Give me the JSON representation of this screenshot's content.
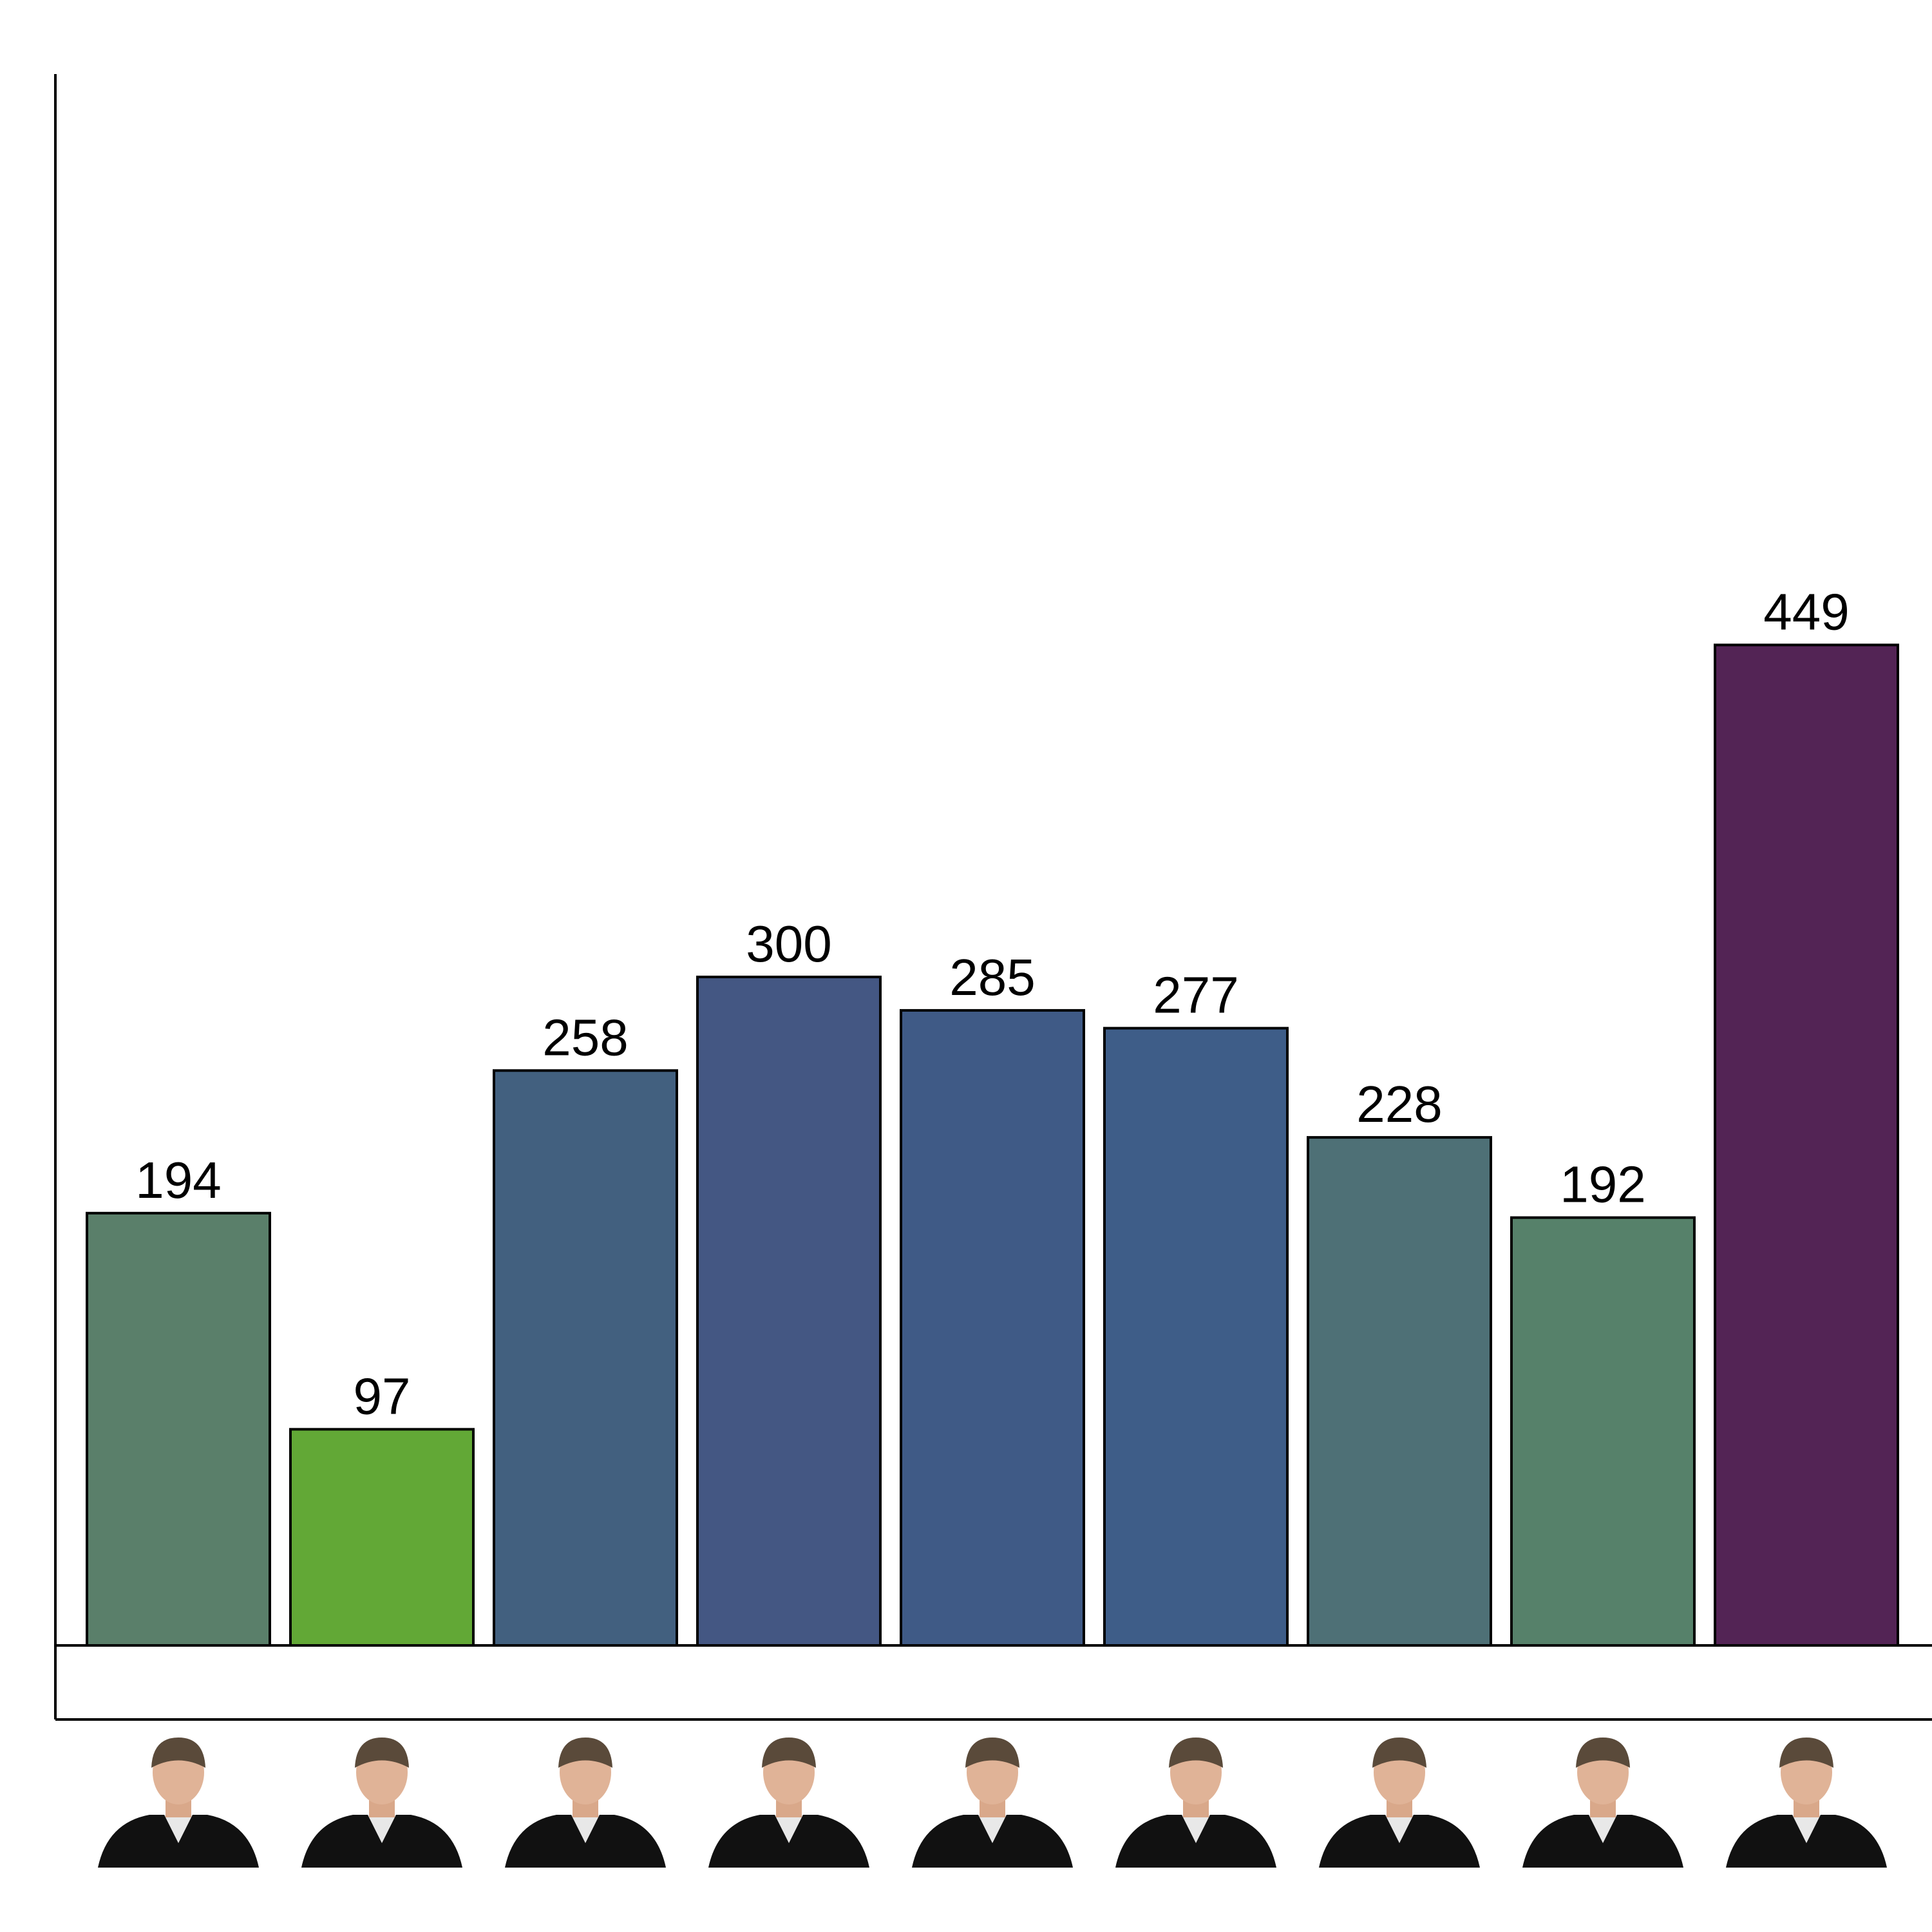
{
  "chart_data": {
    "type": "bar",
    "title": "",
    "xlabel": "",
    "ylabel": "",
    "categories": [
      "",
      "",
      "",
      "",
      "",
      "",
      "",
      "",
      ""
    ],
    "category_icons": [
      "justice-portrait-icon",
      "justice-portrait-icon",
      "justice-portrait-icon",
      "justice-portrait-icon",
      "justice-portrait-icon",
      "justice-portrait-icon",
      "justice-portrait-icon",
      "justice-portrait-icon",
      "justice-portrait-icon"
    ],
    "values": [
      194,
      97,
      258,
      300,
      285,
      277,
      228,
      192,
      449
    ],
    "value_labels": [
      "194",
      "97",
      "258",
      "300",
      "285",
      "277",
      "228",
      "192",
      "449"
    ],
    "colors": [
      "#5a7f6a",
      "#62a836",
      "#42607f",
      "#445783",
      "#3f5a86",
      "#3e5d88",
      "#4e7076",
      "#56816a",
      "#532455"
    ],
    "ylim": [
      0,
      480
    ],
    "grid": false,
    "legend": "none"
  }
}
